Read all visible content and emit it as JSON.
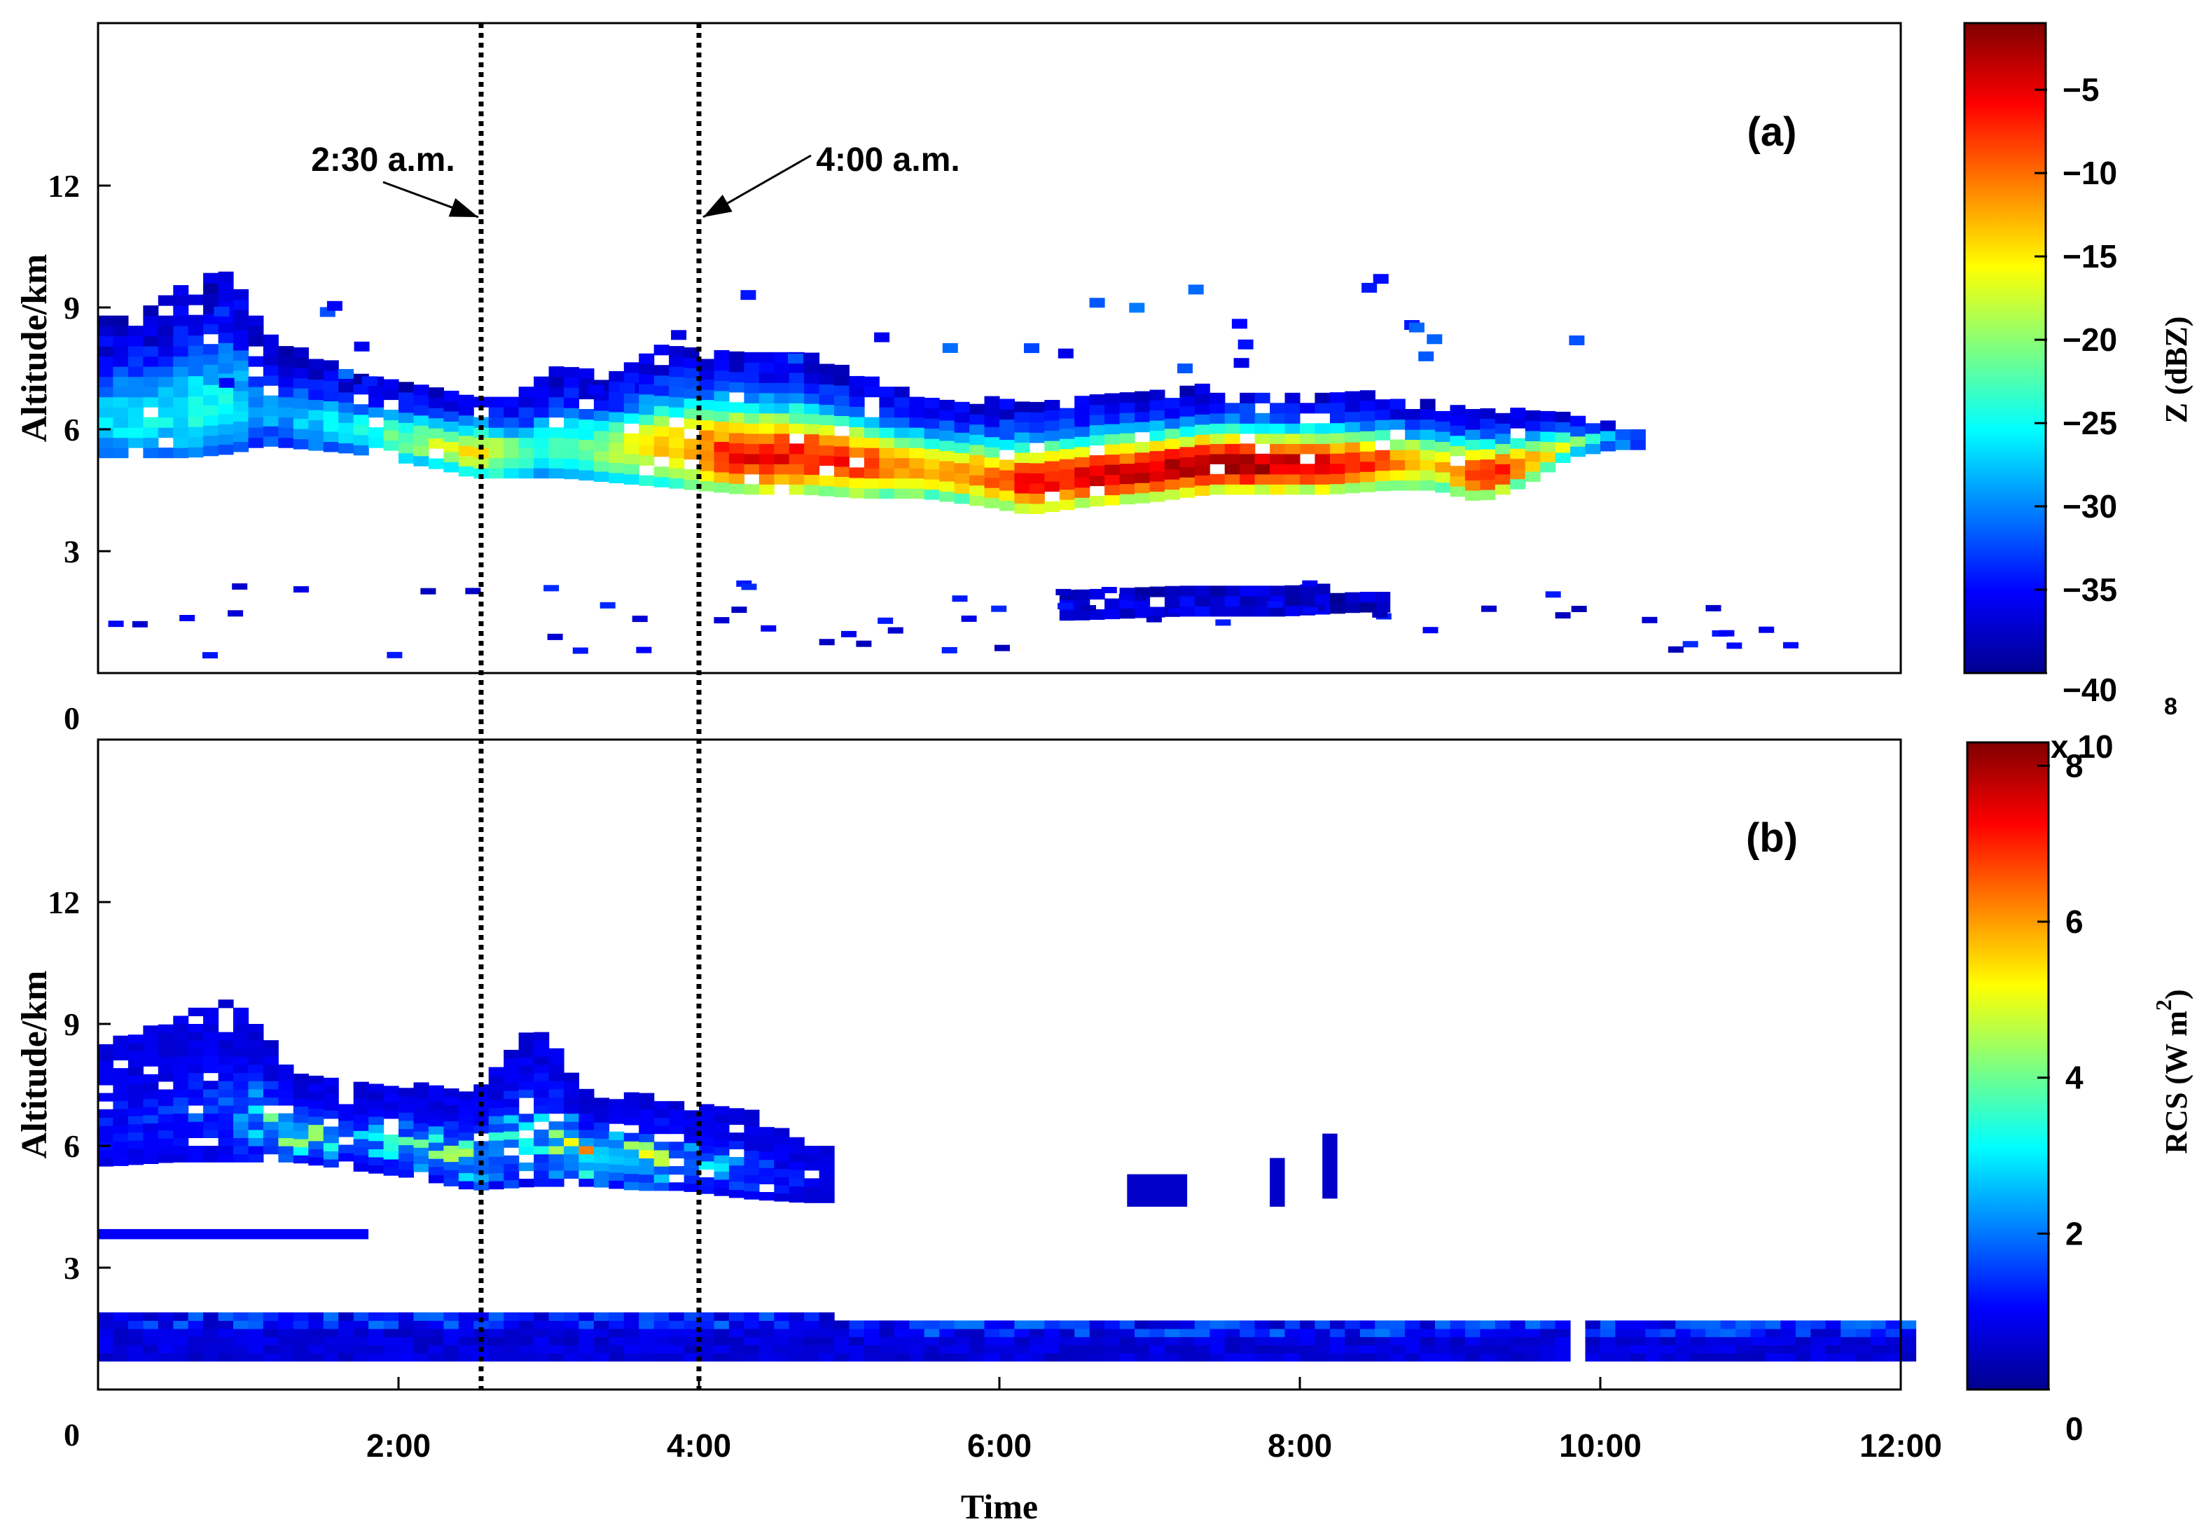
{
  "chart_data": [
    {
      "panel_label": "(a)",
      "type": "heatmap",
      "ylabel": "Altitude/km",
      "ylim": [
        0,
        16
      ],
      "yticks": [
        0,
        3,
        6,
        9,
        12
      ],
      "xlim": [
        0,
        12
      ],
      "colorbar": {
        "label": "Z (dBZ)",
        "range": [
          -40,
          -1
        ],
        "ticks": [
          -40,
          -35,
          -30,
          -25,
          -20,
          -15,
          -10,
          -5
        ],
        "tick_labels": [
          "−40",
          "−35",
          "−30",
          "−25",
          "−20",
          "−15",
          "−10",
          "−5"
        ]
      },
      "annotations": [
        {
          "text": "2:30 a.m.",
          "x": 2.55
        },
        {
          "text": "4:00 a.m.",
          "x": 4.0
        }
      ],
      "regions": [
        {
          "name": "cloud-layer",
          "note": "mixed-phase cloud layer 4-8 km, strongest echo near 5-6 km between 4:00 and 9:30",
          "columns": [
            {
              "t": 0.05,
              "bottom": 5.3,
              "top": 8.6,
              "core": -27
            },
            {
              "t": 0.3,
              "bottom": 5.3,
              "top": 8.7,
              "core": -26
            },
            {
              "t": 0.6,
              "bottom": 5.3,
              "top": 9.5,
              "core": -25
            },
            {
              "t": 0.9,
              "bottom": 5.4,
              "top": 9.8,
              "core": -26
            },
            {
              "t": 1.1,
              "bottom": 5.6,
              "top": 8.3,
              "core": -30
            },
            {
              "t": 1.7,
              "bottom": 5.4,
              "top": 7.3,
              "core": -25
            },
            {
              "t": 2.0,
              "bottom": 5.2,
              "top": 7.1,
              "core": -22
            },
            {
              "t": 2.3,
              "bottom": 5.0,
              "top": 6.9,
              "core": -18
            },
            {
              "t": 2.5,
              "bottom": 4.8,
              "top": 6.8,
              "core": -15
            },
            {
              "t": 2.8,
              "bottom": 4.8,
              "top": 6.7,
              "core": -20
            },
            {
              "t": 3.1,
              "bottom": 4.8,
              "top": 7.5,
              "core": -25
            },
            {
              "t": 3.4,
              "bottom": 4.7,
              "top": 7.2,
              "core": -18
            },
            {
              "t": 3.7,
              "bottom": 4.6,
              "top": 7.9,
              "core": -15
            },
            {
              "t": 4.0,
              "bottom": 4.5,
              "top": 7.9,
              "core": -10
            },
            {
              "t": 4.3,
              "bottom": 4.4,
              "top": 7.8,
              "core": -6
            },
            {
              "t": 4.7,
              "bottom": 4.4,
              "top": 7.7,
              "core": -6
            },
            {
              "t": 5.1,
              "bottom": 4.3,
              "top": 7.2,
              "core": -8
            },
            {
              "t": 5.5,
              "bottom": 4.3,
              "top": 6.7,
              "core": -12
            },
            {
              "t": 5.9,
              "bottom": 4.1,
              "top": 6.6,
              "core": -10
            },
            {
              "t": 6.2,
              "bottom": 3.9,
              "top": 6.6,
              "core": -6
            },
            {
              "t": 6.6,
              "bottom": 4.1,
              "top": 6.7,
              "core": -5
            },
            {
              "t": 7.0,
              "bottom": 4.2,
              "top": 6.8,
              "core": -4
            },
            {
              "t": 7.4,
              "bottom": 4.4,
              "top": 6.9,
              "core": -2
            },
            {
              "t": 7.8,
              "bottom": 4.4,
              "top": 6.9,
              "core": -3
            },
            {
              "t": 8.2,
              "bottom": 4.4,
              "top": 6.8,
              "core": -5
            },
            {
              "t": 8.6,
              "bottom": 4.5,
              "top": 6.7,
              "core": -9
            },
            {
              "t": 8.9,
              "bottom": 4.5,
              "top": 6.5,
              "core": -14
            },
            {
              "t": 9.2,
              "bottom": 4.2,
              "top": 6.4,
              "core": -5
            },
            {
              "t": 9.5,
              "bottom": 4.6,
              "top": 6.3,
              "core": -10
            },
            {
              "t": 9.8,
              "bottom": 5.3,
              "top": 6.2,
              "core": -18
            },
            {
              "t": 10.1,
              "bottom": 5.5,
              "top": 6.0,
              "core": -28
            }
          ]
        },
        {
          "name": "low-echo",
          "note": "scattered weak echoes near 1-2 km",
          "columns": [
            {
              "t": 6.5,
              "bottom": 1.3,
              "top": 1.9,
              "core": -37
            },
            {
              "t": 7.2,
              "bottom": 1.4,
              "top": 2.0,
              "core": -36
            },
            {
              "t": 7.9,
              "bottom": 1.4,
              "top": 2.0,
              "core": -37
            },
            {
              "t": 8.4,
              "bottom": 1.5,
              "top": 1.9,
              "core": -38
            }
          ]
        }
      ]
    },
    {
      "panel_label": "(b)",
      "type": "heatmap",
      "ylabel": "Altitude/km",
      "ylim": [
        0,
        16
      ],
      "yticks": [
        0,
        3,
        6,
        9,
        12
      ],
      "xlabel": "Time",
      "xlim": [
        0,
        12
      ],
      "xticks": [
        2,
        4,
        6,
        8,
        10,
        12
      ],
      "xtick_labels": [
        "2:00",
        "4:00",
        "6:00",
        "8:00",
        "10:00",
        "12:00"
      ],
      "colorbar": {
        "label": "RCS (W m",
        "label_superscript": "2",
        "label_suffix": ")",
        "multiplier": "x 10",
        "multiplier_exponent": "8",
        "range": [
          0,
          8.3
        ],
        "ticks": [
          0,
          2,
          4,
          6,
          8
        ],
        "tick_labels": [
          "0",
          "2",
          "4",
          "6",
          "8"
        ]
      },
      "annotations": [
        {
          "text": "",
          "x": 2.55
        },
        {
          "text": "",
          "x": 4.0
        }
      ],
      "regions": [
        {
          "name": "lidar-cloud",
          "note": "lidar backscatter from cloud 5-8 km until ~4:50",
          "columns": [
            {
              "t": 0.1,
              "bottom": 5.5,
              "top": 8.5,
              "core": 1.2
            },
            {
              "t": 0.5,
              "bottom": 5.6,
              "top": 9.0,
              "core": 1.5
            },
            {
              "t": 0.9,
              "bottom": 5.6,
              "top": 9.6,
              "core": 1.6
            },
            {
              "t": 1.3,
              "bottom": 5.6,
              "top": 7.7,
              "core": 5.5
            },
            {
              "t": 1.7,
              "bottom": 5.4,
              "top": 7.6,
              "core": 2.5
            },
            {
              "t": 2.1,
              "bottom": 5.2,
              "top": 7.4,
              "core": 4.0
            },
            {
              "t": 2.5,
              "bottom": 4.9,
              "top": 7.2,
              "core": 4.5
            },
            {
              "t": 2.9,
              "bottom": 5.0,
              "top": 9.0,
              "core": 3.0
            },
            {
              "t": 3.3,
              "bottom": 5.0,
              "top": 7.0,
              "core": 6.8
            },
            {
              "t": 3.6,
              "bottom": 4.9,
              "top": 7.2,
              "core": 5.5
            },
            {
              "t": 3.9,
              "bottom": 4.9,
              "top": 7.0,
              "core": 3.5
            },
            {
              "t": 4.3,
              "bottom": 4.7,
              "top": 6.8,
              "core": 2.0
            },
            {
              "t": 4.7,
              "bottom": 4.6,
              "top": 6.0,
              "core": 1.0
            }
          ]
        },
        {
          "name": "boundary-layer",
          "note": "boundary-layer aerosol return below 2 km across the full period",
          "bottom": 0.7,
          "top": 1.7,
          "core": 1.2
        },
        {
          "name": "layer-3km",
          "note": "thin layer near 3.8 km from 0:00 to 1:50",
          "t0": 0.0,
          "t1": 1.8,
          "bottom": 3.7,
          "top": 3.95,
          "core": 1.0
        },
        {
          "name": "isolated-patches",
          "note": "isolated weak returns 4.5-6 km between 7:00 and 8:20",
          "patches": [
            {
              "t0": 6.85,
              "t1": 7.25,
              "bottom": 4.5,
              "top": 5.3
            },
            {
              "t0": 7.8,
              "t1": 7.9,
              "bottom": 4.5,
              "top": 5.7
            },
            {
              "t0": 8.15,
              "t1": 8.25,
              "bottom": 4.7,
              "top": 6.3
            }
          ]
        }
      ]
    }
  ]
}
